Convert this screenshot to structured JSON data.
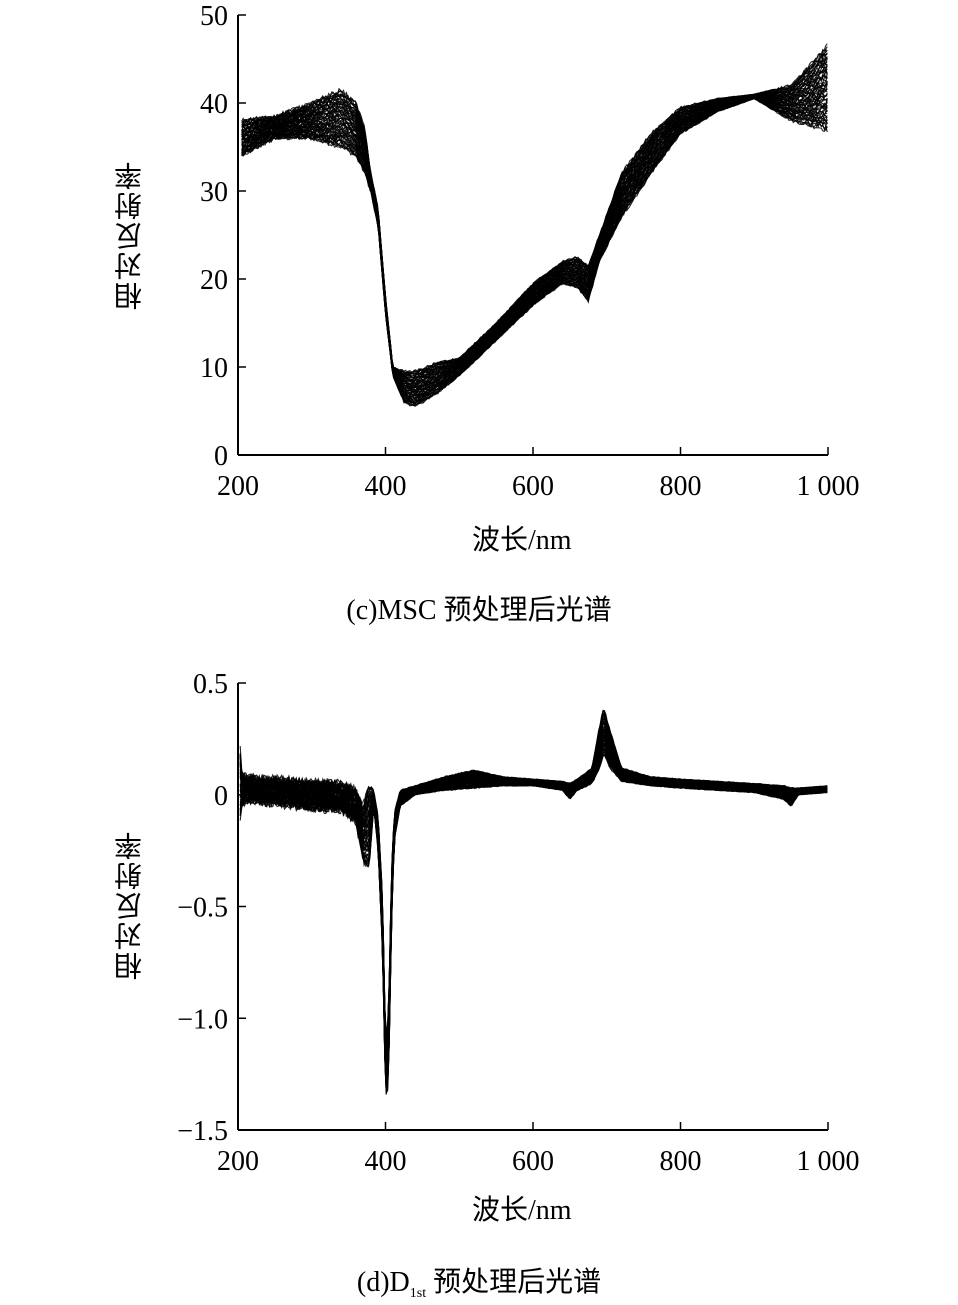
{
  "figure": {
    "captions": {
      "c": "(c)MSC 预处理后光谱",
      "d_prefix": "(d)D",
      "d_sub": "1st",
      "d_suffix": " 预处理后光谱"
    }
  },
  "chart_data": [
    {
      "type": "line",
      "title": "",
      "xlabel": "波长/nm",
      "ylabel": "相对反射率",
      "xlim": [
        200,
        1000
      ],
      "ylim": [
        0,
        50
      ],
      "xticks": [
        200,
        400,
        600,
        800,
        1000
      ],
      "xtick_labels": [
        "200",
        "400",
        "600",
        "800",
        "1 000"
      ],
      "yticks": [
        0,
        10,
        20,
        30,
        40,
        50
      ],
      "ytick_labels": [
        "0",
        "10",
        "20",
        "30",
        "40",
        "50"
      ],
      "grid": false,
      "series_color": "#000000",
      "series_count": 60,
      "envelope": {
        "x": [
          205,
          250,
          300,
          340,
          360,
          372,
          380,
          390,
          400,
          410,
          425,
          440,
          470,
          500,
          550,
          600,
          640,
          660,
          675,
          690,
          720,
          760,
          800,
          850,
          900,
          950,
          1000
        ],
        "lower": [
          34,
          36,
          36,
          35,
          34,
          32,
          30,
          26,
          16,
          9,
          6,
          5.5,
          7,
          9,
          13,
          17,
          19.5,
          19,
          17.5,
          22,
          27,
          32,
          36.5,
          39,
          40.5,
          38,
          37
        ],
        "upper": [
          38,
          38.5,
          40,
          41.5,
          40,
          37,
          32,
          28,
          18,
          10,
          9.5,
          9.5,
          10.5,
          11,
          15,
          19.5,
          22,
          22.5,
          21.5,
          25,
          32,
          36.5,
          39.5,
          40.5,
          41,
          42,
          46.5
        ]
      }
    },
    {
      "type": "line",
      "title": "",
      "xlabel": "波长/nm",
      "ylabel": "相对反射率",
      "xlim": [
        200,
        1000
      ],
      "ylim": [
        -1.5,
        0.5
      ],
      "xticks": [
        200,
        400,
        600,
        800,
        1000
      ],
      "xtick_labels": [
        "200",
        "400",
        "600",
        "800",
        "1 000"
      ],
      "yticks": [
        -1.5,
        -1.0,
        -0.5,
        0,
        0.5
      ],
      "ytick_labels": [
        "−1.5",
        "−1.0",
        "−0.5",
        "0",
        "0.5"
      ],
      "grid": false,
      "series_color": "#000000",
      "series_count": 60,
      "envelope": {
        "x": [
          203,
          205,
          210,
          250,
          300,
          340,
          360,
          370,
          378,
          384,
          390,
          396,
          400,
          404,
          408,
          412,
          420,
          440,
          480,
          520,
          560,
          600,
          640,
          650,
          660,
          680,
          690,
          696,
          705,
          720,
          760,
          800,
          850,
          900,
          940,
          950,
          960,
          1000
        ],
        "lower": [
          -0.1,
          -0.05,
          -0.03,
          -0.04,
          -0.06,
          -0.07,
          -0.12,
          -0.3,
          -0.32,
          -0.05,
          -0.25,
          -0.7,
          -1.35,
          -1.3,
          -0.6,
          -0.2,
          -0.05,
          0.0,
          0.02,
          0.03,
          0.04,
          0.04,
          0.02,
          -0.02,
          0.02,
          0.05,
          0.12,
          0.18,
          0.12,
          0.06,
          0.04,
          0.03,
          0.02,
          0.01,
          -0.02,
          -0.05,
          0.0,
          0.01
        ],
        "upper": [
          0.2,
          0.1,
          0.08,
          0.07,
          0.06,
          0.05,
          0.02,
          -0.05,
          0.05,
          0.02,
          -0.1,
          -0.45,
          -1.1,
          -1.0,
          -0.35,
          -0.08,
          0.02,
          0.04,
          0.08,
          0.11,
          0.08,
          0.07,
          0.06,
          0.05,
          0.07,
          0.12,
          0.3,
          0.39,
          0.28,
          0.12,
          0.08,
          0.07,
          0.06,
          0.05,
          0.04,
          0.03,
          0.03,
          0.04
        ]
      }
    }
  ]
}
